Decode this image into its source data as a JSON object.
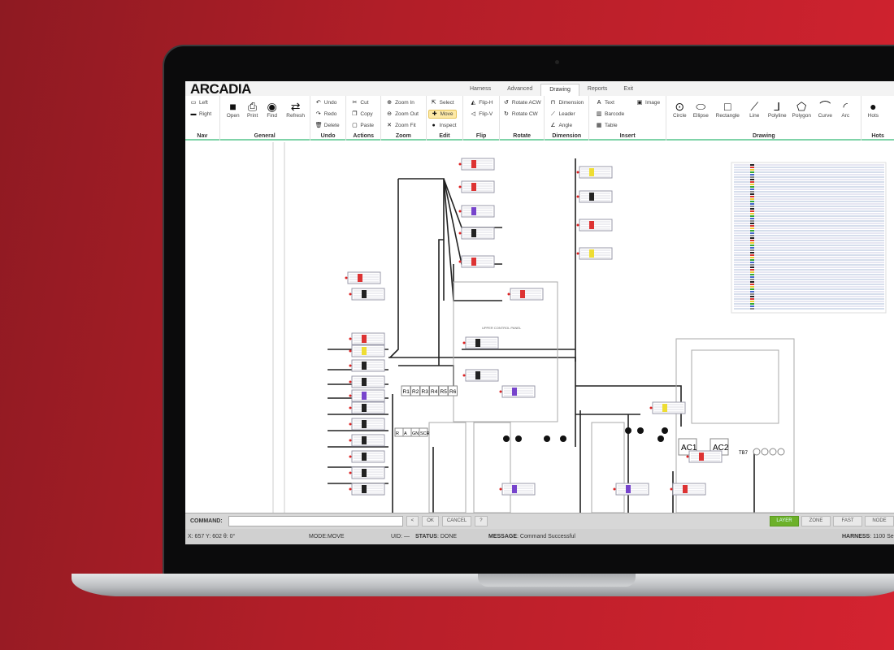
{
  "app": {
    "logo": "ARCADIA"
  },
  "tabs": [
    "Harness",
    "Advanced",
    "Drawing",
    "Reports",
    "Exit"
  ],
  "active_tab": "Drawing",
  "ribbon": {
    "nav": {
      "label": "Nav",
      "items": [
        "Left",
        "Right"
      ]
    },
    "general": {
      "label": "General",
      "items": [
        "Open",
        "Print",
        "Find",
        "Refresh"
      ]
    },
    "undo": {
      "label": "Undo",
      "items": [
        "Undo",
        "Redo",
        "Delete"
      ]
    },
    "actions": {
      "label": "Actions",
      "items": [
        "Cut",
        "Copy",
        "Paste"
      ]
    },
    "zoom": {
      "label": "Zoom",
      "items": [
        "Zoom In",
        "Zoom Out",
        "Zoom Fit"
      ]
    },
    "edit": {
      "label": "Edit",
      "items": [
        "Select",
        "Move",
        "Inspect"
      ],
      "active": "Move"
    },
    "flip": {
      "label": "Flip",
      "items": [
        "Flip-H",
        "Flip-V"
      ]
    },
    "rotate": {
      "label": "Rotate",
      "items": [
        "Rotate ACW",
        "Rotate CW"
      ]
    },
    "dimension": {
      "label": "Dimension",
      "items": [
        "Dimension",
        "Leader",
        "Angle"
      ]
    },
    "insert": {
      "label": "Insert",
      "items": [
        "Text",
        "Barcode",
        "Table",
        "Image"
      ]
    },
    "drawing": {
      "label": "Drawing",
      "items": [
        "Circle",
        "Ellipse",
        "Rectangle",
        "Line",
        "Polyline",
        "Polygon",
        "Curve",
        "Arc"
      ]
    },
    "hotspot": {
      "label": "Hots",
      "items": [
        "Hots"
      ]
    }
  },
  "schematic": {
    "resistors": [
      "R1",
      "R2",
      "R3",
      "R4",
      "R5",
      "R6"
    ],
    "terminal": [
      "R",
      "A",
      "GND",
      "SCR"
    ],
    "ac": [
      "AC1",
      "AC2"
    ],
    "tb": "TB7",
    "panel_title": "UPPER CONTROL PANEL"
  },
  "command": {
    "label": "COMMAND:",
    "value": "",
    "buttons": [
      "<",
      "OK",
      "CANCEL",
      "?"
    ],
    "modes": [
      "LAYER",
      "ZONE",
      "FAST",
      "NODE"
    ],
    "active_mode": "LAYER"
  },
  "status": {
    "coords": "X: 657 Y: 602 θ: 0°",
    "mode": "MODE:MOVE",
    "uid": "UID: —",
    "status_label": "STATUS",
    "status_value": "DONE",
    "message_label": "MESSAGE",
    "message_value": "Command Successful",
    "harness_label": "HARNESS",
    "harness_value": "1100 Se"
  },
  "colors": {
    "accent": "#6db12a",
    "background": "#c41f2b",
    "ribbon_border": "#7fd3a8"
  }
}
